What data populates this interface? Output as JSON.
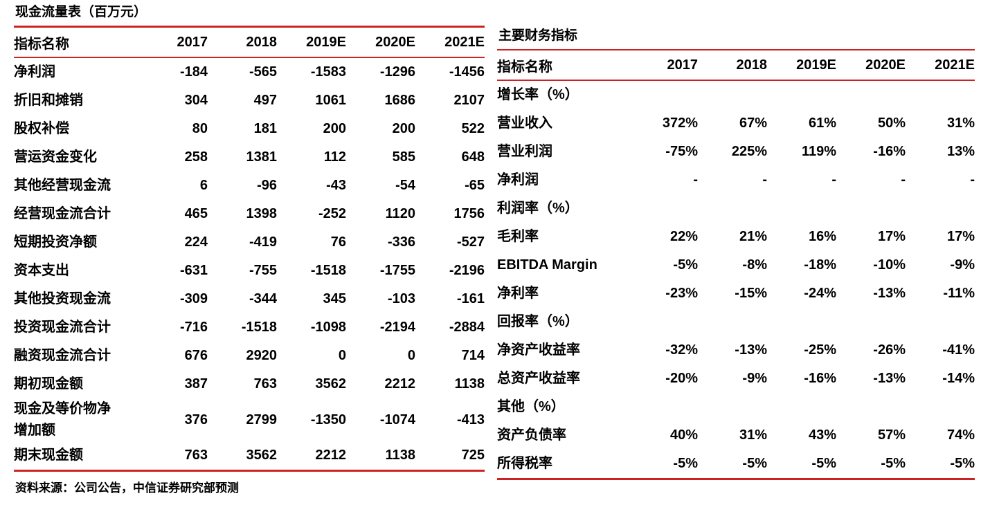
{
  "accent_color": "#cc2222",
  "source_note": "资料来源：公司公告，中信证券研究部预测",
  "left_table": {
    "title": "现金流量表（百万元）",
    "columns": [
      "指标名称",
      "2017",
      "2018",
      "2019E",
      "2020E",
      "2021E"
    ],
    "rows": [
      {
        "label": "净利润",
        "values": [
          "-184",
          "-565",
          "-1583",
          "-1296",
          "-1456"
        ]
      },
      {
        "label": "折旧和摊销",
        "values": [
          "304",
          "497",
          "1061",
          "1686",
          "2107"
        ]
      },
      {
        "label": "股权补偿",
        "values": [
          "80",
          "181",
          "200",
          "200",
          "522"
        ]
      },
      {
        "label": "营运资金变化",
        "values": [
          "258",
          "1381",
          "112",
          "585",
          "648"
        ]
      },
      {
        "label": "其他经营现金流",
        "values": [
          "6",
          "-96",
          "-43",
          "-54",
          "-65"
        ]
      },
      {
        "label": "经营现金流合计",
        "values": [
          "465",
          "1398",
          "-252",
          "1120",
          "1756"
        ]
      },
      {
        "label": "短期投资净额",
        "values": [
          "224",
          "-419",
          "76",
          "-336",
          "-527"
        ]
      },
      {
        "label": "资本支出",
        "values": [
          "-631",
          "-755",
          "-1518",
          "-1755",
          "-2196"
        ]
      },
      {
        "label": "其他投资现金流",
        "values": [
          "-309",
          "-344",
          "345",
          "-103",
          "-161"
        ]
      },
      {
        "label": "投资现金流合计",
        "values": [
          "-716",
          "-1518",
          "-1098",
          "-2194",
          "-2884"
        ]
      },
      {
        "label": "融资现金流合计",
        "values": [
          "676",
          "2920",
          "0",
          "0",
          "714"
        ]
      },
      {
        "label": "期初现金额",
        "values": [
          "387",
          "763",
          "3562",
          "2212",
          "1138"
        ]
      },
      {
        "label": "现金及等价物净\n增加额",
        "values": [
          "376",
          "2799",
          "-1350",
          "-1074",
          "-413"
        ]
      },
      {
        "label": "期末现金额",
        "values": [
          "763",
          "3562",
          "2212",
          "1138",
          "725"
        ]
      }
    ]
  },
  "right_table": {
    "title": "主要财务指标",
    "columns": [
      "指标名称",
      "2017",
      "2018",
      "2019E",
      "2020E",
      "2021E"
    ],
    "rows": [
      {
        "label": "增长率（%）",
        "section": true,
        "values": [
          "",
          "",
          "",
          "",
          ""
        ]
      },
      {
        "label": "营业收入",
        "values": [
          "372%",
          "67%",
          "61%",
          "50%",
          "31%"
        ]
      },
      {
        "label": "营业利润",
        "values": [
          "-75%",
          "225%",
          "119%",
          "-16%",
          "13%"
        ]
      },
      {
        "label": "净利润",
        "values": [
          "-",
          "-",
          "-",
          "-",
          "-"
        ]
      },
      {
        "label": "利润率（%）",
        "section": true,
        "values": [
          "",
          "",
          "",
          "",
          ""
        ]
      },
      {
        "label": "毛利率",
        "values": [
          "22%",
          "21%",
          "16%",
          "17%",
          "17%"
        ]
      },
      {
        "label": "EBITDA Margin",
        "values": [
          "-5%",
          "-8%",
          "-18%",
          "-10%",
          "-9%"
        ]
      },
      {
        "label": "净利率",
        "values": [
          "-23%",
          "-15%",
          "-24%",
          "-13%",
          "-11%"
        ]
      },
      {
        "label": "回报率（%）",
        "section": true,
        "values": [
          "",
          "",
          "",
          "",
          ""
        ]
      },
      {
        "label": "净资产收益率",
        "values": [
          "-32%",
          "-13%",
          "-25%",
          "-26%",
          "-41%"
        ]
      },
      {
        "label": "总资产收益率",
        "values": [
          "-20%",
          "-9%",
          "-16%",
          "-13%",
          "-14%"
        ]
      },
      {
        "label": "其他（%）",
        "section": true,
        "values": [
          "",
          "",
          "",
          "",
          ""
        ]
      },
      {
        "label": "资产负债率",
        "values": [
          "40%",
          "31%",
          "43%",
          "57%",
          "74%"
        ]
      },
      {
        "label": "所得税率",
        "values": [
          "-5%",
          "-5%",
          "-5%",
          "-5%",
          "-5%"
        ]
      }
    ]
  }
}
